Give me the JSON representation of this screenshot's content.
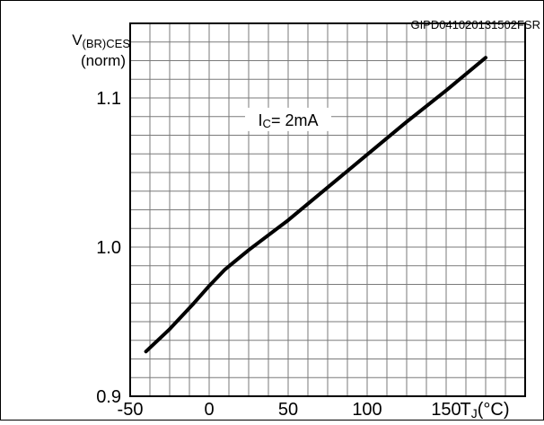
{
  "reference_code": "GIPD041020131502FSR",
  "chart_data": {
    "type": "line",
    "title": "",
    "xlabel": {
      "main": "T",
      "sub": "J",
      "unit": "(°C)"
    },
    "ylabel": {
      "main": "V",
      "sub": "(BR)CES",
      "unit": "(norm)"
    },
    "xlim": [
      -50,
      200
    ],
    "ylim": [
      0.9,
      1.15
    ],
    "x_ticks": [
      -50,
      0,
      50,
      100,
      150
    ],
    "y_ticks": [
      0.9,
      1.0,
      1.1
    ],
    "x_tick_labels": [
      "-50",
      "0",
      "50",
      "100",
      "150"
    ],
    "y_tick_labels": [
      "0.9",
      "1.0",
      "1.1"
    ],
    "x_minor_step": 12.5,
    "y_minor_step": 0.0125,
    "grid": true,
    "annotation": {
      "main": "I",
      "sub": "C",
      "rest": "= 2mA",
      "x": 50,
      "y": 1.085
    },
    "series": [
      {
        "x": [
          -40,
          -25,
          -10,
          0,
          10,
          25,
          50,
          75,
          100,
          125,
          150,
          175
        ],
        "y": [
          0.93,
          0.945,
          0.962,
          0.974,
          0.985,
          0.998,
          1.018,
          1.04,
          1.062,
          1.084,
          1.105,
          1.127
        ]
      }
    ]
  }
}
